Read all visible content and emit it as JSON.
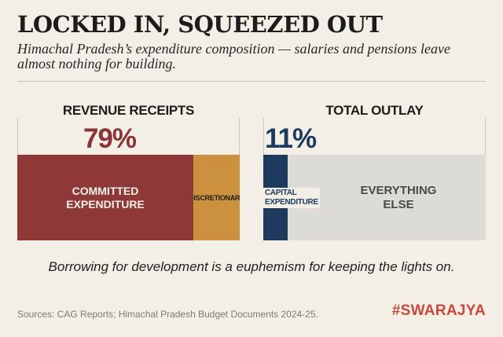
{
  "title": "LOCKED IN, SQUEEZED OUT",
  "subtitle": "Himachal Pradesh’s expenditure composition — salaries and pensions leave almost nothing for building.",
  "chart_data": [
    {
      "type": "bar",
      "orientation": "horizontal-stacked",
      "title": "REVENUE RECEIPTS",
      "highlight_label": "79%",
      "segments": [
        {
          "name": "COMMITTED EXPENDITURE",
          "value": 79,
          "color": "#8e3838"
        },
        {
          "name": "DISCRETIONARY",
          "value": 21,
          "color": "#cc913f"
        }
      ]
    },
    {
      "type": "bar",
      "orientation": "horizontal-stacked",
      "title": "TOTAL OUTLAY",
      "highlight_label": "11%",
      "segments": [
        {
          "name": "CAPITAL EXPENDITURE",
          "value": 11,
          "color": "#1e3a5c"
        },
        {
          "name": "EVERYTHING ELSE",
          "value": 89,
          "color": "#dcdbd7"
        }
      ]
    }
  ],
  "labels": {
    "committed_line1": "COMMITTED",
    "committed_line2": "EXPENDITURE",
    "discretionary": "DISCRETIONARY",
    "capital_line1": "CAPITAL",
    "capital_line2": "EXPENDITURE",
    "else_line1": "EVERYTHING",
    "else_line2": "ELSE"
  },
  "tagline": "Borrowing for development is a euphemism for keeping the lights on.",
  "sources": "Sources: CAG Reports; Himachal Pradesh Budget Documents 2024-25.",
  "brand": "#SWARAJYA"
}
